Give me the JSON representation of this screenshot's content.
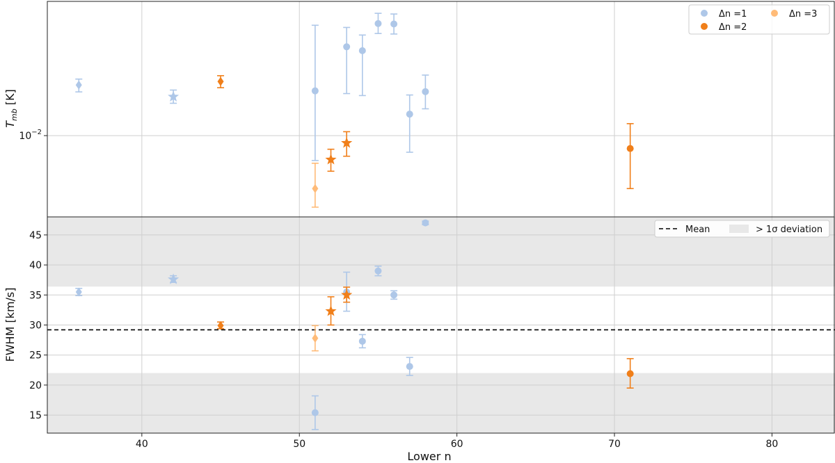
{
  "chart_data": [
    {
      "type": "scatter",
      "panel": "top",
      "ylabel_base": "T",
      "ylabel_sub": "mb",
      "ylabel_unit": "[K]",
      "yscale": "log",
      "ylim": [
        0.00245,
        0.102
      ],
      "xlim": [
        34,
        84
      ],
      "ytick_label": "10",
      "ytick_exp": "−2",
      "grid": true,
      "legend_position": "top-right",
      "colors": {
        "dn1": "#aec7e8",
        "dn2": "#f07f1a",
        "dn3": "#ffbb78"
      },
      "legend": [
        {
          "name": "Δn =1",
          "color": "#aec7e8"
        },
        {
          "name": "Δn =2",
          "color": "#f07f1a"
        },
        {
          "name": "Δn =3",
          "color": "#ffbb78"
        }
      ],
      "points": [
        {
          "x": 36,
          "y": 0.024,
          "lo": 0.0213,
          "hi": 0.0266,
          "series": "dn1",
          "marker": "diamond"
        },
        {
          "x": 42,
          "y": 0.0196,
          "lo": 0.0175,
          "hi": 0.022,
          "series": "dn1",
          "marker": "star"
        },
        {
          "x": 51,
          "y": 0.0217,
          "lo": 0.0065,
          "hi": 0.0675,
          "series": "dn1",
          "marker": "circle"
        },
        {
          "x": 53,
          "y": 0.0465,
          "lo": 0.0207,
          "hi": 0.065,
          "series": "dn1",
          "marker": "circle"
        },
        {
          "x": 54,
          "y": 0.0435,
          "lo": 0.02,
          "hi": 0.057,
          "series": "dn1",
          "marker": "circle"
        },
        {
          "x": 55,
          "y": 0.0695,
          "lo": 0.0585,
          "hi": 0.083,
          "series": "dn1",
          "marker": "circle"
        },
        {
          "x": 56,
          "y": 0.069,
          "lo": 0.058,
          "hi": 0.082,
          "series": "dn1",
          "marker": "circle"
        },
        {
          "x": 57,
          "y": 0.0145,
          "lo": 0.0075,
          "hi": 0.0202,
          "series": "dn1",
          "marker": "circle"
        },
        {
          "x": 58,
          "y": 0.0214,
          "lo": 0.0159,
          "hi": 0.0285,
          "series": "dn1",
          "marker": "circle"
        },
        {
          "x": 45,
          "y": 0.0255,
          "lo": 0.0229,
          "hi": 0.0282,
          "series": "dn2",
          "marker": "diamond"
        },
        {
          "x": 52,
          "y": 0.0066,
          "lo": 0.0054,
          "hi": 0.0079,
          "series": "dn2",
          "marker": "star"
        },
        {
          "x": 53,
          "y": 0.0088,
          "lo": 0.007,
          "hi": 0.0107,
          "series": "dn2",
          "marker": "star"
        },
        {
          "x": 71,
          "y": 0.008,
          "lo": 0.004,
          "hi": 0.0123,
          "series": "dn2",
          "marker": "circle"
        },
        {
          "x": 51,
          "y": 0.004,
          "lo": 0.0029,
          "hi": 0.0062,
          "series": "dn3",
          "marker": "diamond"
        }
      ]
    },
    {
      "type": "scatter",
      "panel": "bottom",
      "xlabel": "Lower n",
      "ylabel": "FWHM [km/s]",
      "xlim": [
        34,
        84
      ],
      "ylim": [
        12,
        48
      ],
      "xticks": [
        40,
        50,
        60,
        70,
        80
      ],
      "yticks": [
        15,
        20,
        25,
        30,
        35,
        40,
        45
      ],
      "grid": true,
      "legend_position": "top-right",
      "mean": 29.2,
      "band_inner": [
        22.0,
        36.4
      ],
      "legend": [
        {
          "name": "Mean"
        },
        {
          "name": "> 1σ deviation"
        }
      ],
      "colors": {
        "dn1": "#aec7e8",
        "dn2": "#f07f1a",
        "dn3": "#ffbb78",
        "band": "#e8e8e8"
      },
      "points": [
        {
          "x": 36,
          "y": 35.5,
          "lo": 34.9,
          "hi": 36.1,
          "series": "dn1",
          "marker": "diamond"
        },
        {
          "x": 42,
          "y": 37.6,
          "lo": 37.1,
          "hi": 38.2,
          "series": "dn1",
          "marker": "star"
        },
        {
          "x": 51,
          "y": 15.4,
          "lo": 12.6,
          "hi": 18.2,
          "series": "dn1",
          "marker": "circle"
        },
        {
          "x": 53,
          "y": 35.5,
          "lo": 32.3,
          "hi": 38.8,
          "series": "dn1",
          "marker": "circle"
        },
        {
          "x": 54,
          "y": 27.3,
          "lo": 26.2,
          "hi": 28.4,
          "series": "dn1",
          "marker": "circle"
        },
        {
          "x": 55,
          "y": 39.0,
          "lo": 38.2,
          "hi": 39.8,
          "series": "dn1",
          "marker": "circle"
        },
        {
          "x": 56,
          "y": 35.0,
          "lo": 34.3,
          "hi": 35.7,
          "series": "dn1",
          "marker": "circle"
        },
        {
          "x": 57,
          "y": 23.1,
          "lo": 21.6,
          "hi": 24.6,
          "series": "dn1",
          "marker": "circle"
        },
        {
          "x": 58,
          "y": 47.0,
          "lo": 46.7,
          "hi": 47.3,
          "series": "dn1",
          "marker": "circle"
        },
        {
          "x": 45,
          "y": 29.9,
          "lo": 29.4,
          "hi": 30.5,
          "series": "dn2",
          "marker": "diamond"
        },
        {
          "x": 52,
          "y": 32.3,
          "lo": 30.0,
          "hi": 34.7,
          "series": "dn2",
          "marker": "star"
        },
        {
          "x": 53,
          "y": 35.0,
          "lo": 33.8,
          "hi": 36.3,
          "series": "dn2",
          "marker": "star"
        },
        {
          "x": 71,
          "y": 21.9,
          "lo": 19.5,
          "hi": 24.4,
          "series": "dn2",
          "marker": "circle"
        },
        {
          "x": 51,
          "y": 27.8,
          "lo": 25.7,
          "hi": 29.9,
          "series": "dn3",
          "marker": "diamond"
        }
      ]
    }
  ]
}
